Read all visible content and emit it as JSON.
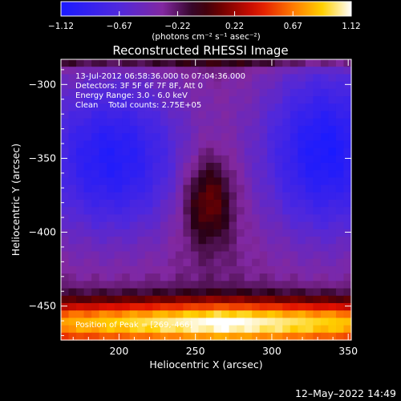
{
  "chart_data": {
    "type": "heatmap",
    "title": "Reconstructed RHESSI Image",
    "xlabel": "Heliocentric X (arcsec)",
    "ylabel": "Heliocentric Y (arcsec)",
    "xlim": [
      162,
      352
    ],
    "ylim": [
      -473,
      -283
    ],
    "x_ticks": [
      200,
      250,
      300,
      350
    ],
    "x_tick_labels": [
      "200",
      "250",
      "300",
      "350"
    ],
    "y_ticks": [
      -300,
      -350,
      -400,
      -450
    ],
    "y_tick_labels": [
      "−300",
      "−350",
      "−400",
      "−450"
    ],
    "colorbar": {
      "range": [
        -1.12,
        1.12
      ],
      "tick_values": [
        -1.12,
        -0.67,
        -0.22,
        0.22,
        0.67,
        1.12
      ],
      "tick_labels": [
        "−1.12",
        "−0.67",
        "−0.22",
        "0.22",
        "0.67",
        "1.12"
      ],
      "unit_label": "(photons cm⁻² s⁻¹ asec⁻²)",
      "colors": [
        "#1a1aff",
        "#5a20d8",
        "#8a2aa0",
        "#1e0010",
        "#8a0000",
        "#e01000",
        "#ff7a00",
        "#ffd000",
        "#ffffff"
      ]
    },
    "annotations": [
      "13-Jul-2012 06:58:36.000 to 07:04:36.000",
      "Detectors: 3F 5F 6F 7F 8F, Att 0",
      "Energy Range: 3.0 - 6.0 keV",
      "Clean    Total counts: 2.75E+05"
    ],
    "peak_label": "Position of Peak = [269,-466]",
    "peak": [
      269,
      -466
    ],
    "features": [
      {
        "x": 195,
        "y": -350,
        "amplitude": -0.75,
        "sx": 35,
        "sy": 38
      },
      {
        "x": 335,
        "y": -345,
        "amplitude": -0.8,
        "sx": 30,
        "sy": 42
      },
      {
        "x": 258,
        "y": -378,
        "amplitude": 0.5,
        "sx": 12,
        "sy": 22
      }
    ],
    "bright_band_center_y": -462,
    "timestamp": "12–May–2022 14:49"
  }
}
